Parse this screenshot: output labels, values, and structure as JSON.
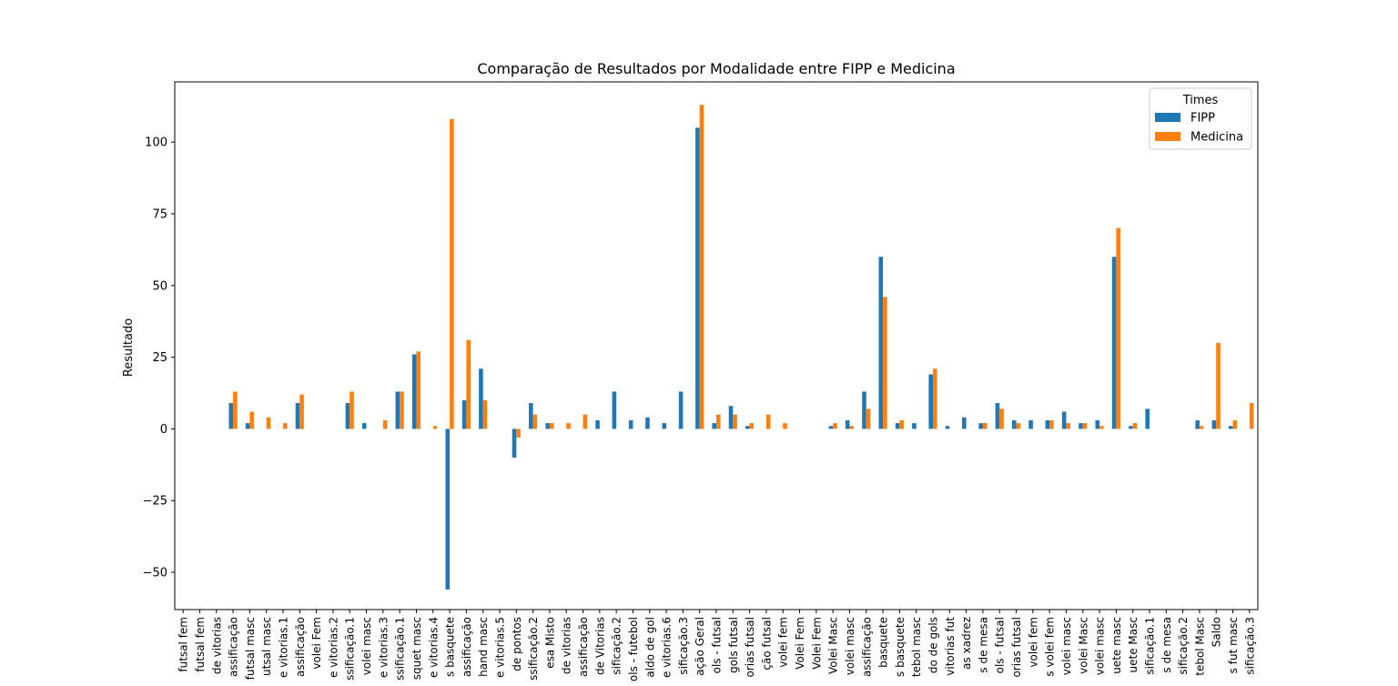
{
  "chart_data": {
    "type": "bar",
    "title": "Comparação de Resultados por Modalidade entre FIPP e Medicina",
    "xlabel": "",
    "ylabel": "Resultado",
    "ylim": [
      -63,
      121
    ],
    "yticks": [
      -50,
      -25,
      0,
      25,
      50,
      75,
      100
    ],
    "grid": false,
    "legend": {
      "title": "Times",
      "placement": "top-right"
    },
    "categories": [
      "futsal fem",
      "futsal fem",
      "de vitorias",
      "assificação",
      "futsal masc",
      "utsal masc",
      "e vitorias.1",
      "assificação",
      "volei Fem",
      "e vitorias.2",
      "ssificação.1",
      "volei masc",
      "e vitorias.3",
      "ssificação.1",
      "squet masc",
      "e vitorias.4",
      "s basquete",
      "assificação",
      "hand masc",
      "e vitorias.5",
      "de pontos",
      "ssificação.2",
      "esa Misto",
      "de vitorias",
      "assificação",
      "de Vitorias",
      "sificação.2",
      "ols - futebol",
      "aldo de gol",
      "e vitorias.6",
      "sificação.3",
      "ação Geral",
      "ols - futsal",
      "gols futsal",
      "orias futsal",
      "ção futsal",
      "volei fem",
      "Volei Fem",
      "Volei Fem",
      "Volei Masc",
      "volei masc",
      "assificação",
      "basquete",
      "s basquete",
      "tebol masc",
      "do de gols",
      "vitorias fut",
      "as xadrez",
      "s de mesa",
      "ols - futsal",
      "orias futsal",
      "volei fem",
      "s volei fem",
      "volei masc",
      "volei Masc",
      "volei masc",
      "uete masc",
      "uete Masc",
      "sificação.1",
      "s de mesa",
      "sificação.2",
      "tebol Masc",
      "Saldo",
      "s fut masc",
      "sificação.3"
    ],
    "series": [
      {
        "name": "FIPP",
        "color": "#1f77b4",
        "values": [
          0,
          0,
          0,
          9,
          2,
          0,
          0,
          9,
          0,
          0,
          9,
          2,
          0,
          13,
          26,
          0,
          -56,
          10,
          21,
          0,
          -10,
          9,
          2,
          0,
          0,
          3,
          13,
          3,
          4,
          2,
          13,
          105,
          2,
          8,
          1,
          0,
          0,
          0,
          0,
          1,
          3,
          13,
          60,
          2,
          2,
          19,
          1,
          4,
          2,
          9,
          3,
          3,
          3,
          6,
          2,
          3,
          60,
          1,
          7,
          0,
          0,
          3,
          3,
          1,
          0
        ]
      },
      {
        "name": "Medicina",
        "color": "#ff7f0e",
        "values": [
          0,
          0,
          0,
          13,
          6,
          4,
          2,
          12,
          0,
          0,
          13,
          0,
          3,
          13,
          27,
          1,
          108,
          31,
          10,
          0,
          -3,
          5,
          2,
          2,
          5,
          0,
          0,
          0,
          0,
          0,
          0,
          113,
          5,
          5,
          2,
          5,
          2,
          0,
          0,
          2,
          1,
          7,
          46,
          3,
          0,
          21,
          0,
          0,
          2,
          7,
          2,
          0,
          3,
          2,
          2,
          1,
          70,
          2,
          0,
          0,
          0,
          1,
          30,
          3,
          9
        ]
      }
    ]
  }
}
